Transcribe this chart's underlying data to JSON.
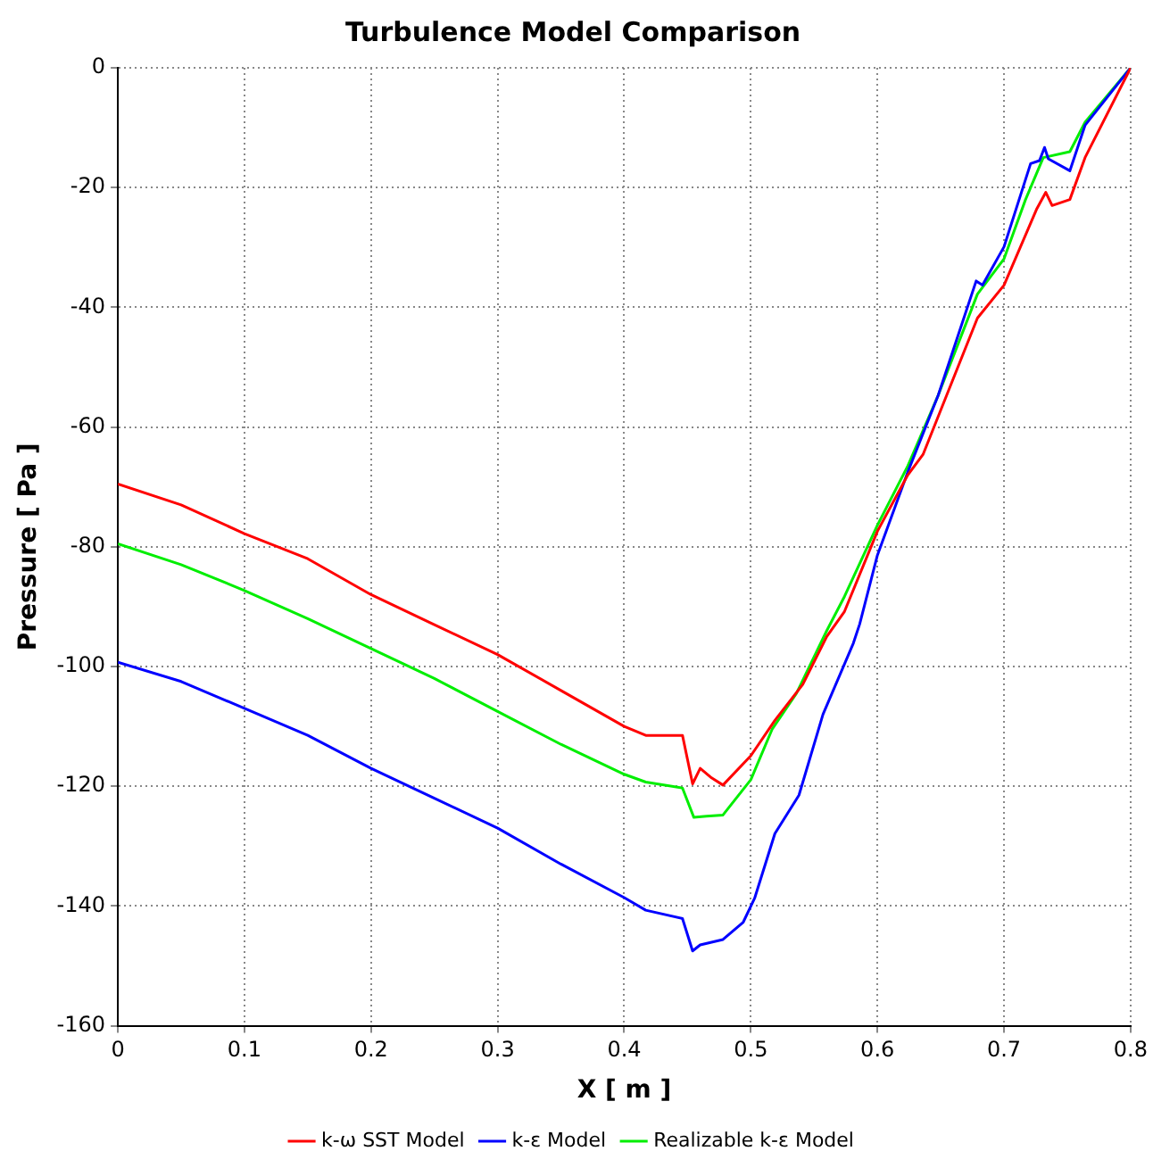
{
  "chart_data": {
    "type": "line",
    "title": "Turbulence Model Comparison",
    "xlabel": "X [ m ]",
    "ylabel": "Pressure [ Pa ]",
    "xlim": [
      0,
      0.8
    ],
    "xticks": [
      0,
      0.1,
      0.2,
      0.3,
      0.4,
      0.5,
      0.6,
      0.7,
      0.8
    ],
    "ylim": [
      -160,
      0
    ],
    "yticks": [
      -160,
      -140,
      -120,
      -100,
      -80,
      -60,
      -40,
      -20,
      0
    ],
    "grid": true,
    "legend": "bottom",
    "marker": "none",
    "line_style": "solid",
    "series": [
      {
        "name": "k-ω SST Model",
        "color": "#ff0000",
        "x": [
          0,
          0.05,
          0.1,
          0.15,
          0.2,
          0.25,
          0.3,
          0.35,
          0.4,
          0.417,
          0.446,
          0.454,
          0.46,
          0.469,
          0.478,
          0.5,
          0.519,
          0.541,
          0.56,
          0.574,
          0.6,
          0.624,
          0.636,
          0.679,
          0.7,
          0.726,
          0.733,
          0.738,
          0.752,
          0.764,
          0.8
        ],
        "values": [
          -69.5,
          -73,
          -77.8,
          -82,
          -88,
          -93,
          -98,
          -104,
          -110,
          -111.5,
          -111.5,
          -119.6,
          -117,
          -118.6,
          -119.8,
          -114.9,
          -109,
          -103,
          -95,
          -90.8,
          -77.4,
          -68,
          -64.6,
          -41.8,
          -36.3,
          -23.5,
          -20.8,
          -23,
          -22,
          -15,
          0
        ]
      },
      {
        "name": "k-ε Model",
        "color": "#0000ff",
        "x": [
          0,
          0.05,
          0.1,
          0.15,
          0.2,
          0.25,
          0.3,
          0.35,
          0.4,
          0.417,
          0.446,
          0.454,
          0.46,
          0.478,
          0.494,
          0.503,
          0.519,
          0.538,
          0.557,
          0.581,
          0.586,
          0.6,
          0.624,
          0.648,
          0.678,
          0.683,
          0.7,
          0.721,
          0.728,
          0.732,
          0.735,
          0.752,
          0.764,
          0.8
        ],
        "values": [
          -99.3,
          -102.5,
          -107,
          -111.5,
          -117,
          -122,
          -127,
          -133,
          -138.6,
          -140.7,
          -142.1,
          -147.5,
          -146.5,
          -145.6,
          -142.7,
          -138.7,
          -127.9,
          -121.5,
          -108,
          -96.1,
          -92.9,
          -81.4,
          -67.5,
          -54.7,
          -35.6,
          -36.3,
          -29.9,
          -16,
          -15.5,
          -13.3,
          -15.2,
          -17.2,
          -9.6,
          0
        ]
      },
      {
        "name": "Realizable k-ε Model",
        "color": "#00ee00",
        "x": [
          0,
          0.05,
          0.1,
          0.15,
          0.2,
          0.25,
          0.3,
          0.35,
          0.4,
          0.417,
          0.446,
          0.455,
          0.465,
          0.478,
          0.5,
          0.517,
          0.536,
          0.56,
          0.574,
          0.6,
          0.624,
          0.648,
          0.679,
          0.7,
          0.717,
          0.731,
          0.752,
          0.764,
          0.8
        ],
        "values": [
          -79.5,
          -83,
          -87.3,
          -92,
          -97,
          -102,
          -107.5,
          -113,
          -118,
          -119.3,
          -120.3,
          -125.2,
          -125,
          -124.8,
          -118.9,
          -110.4,
          -104.5,
          -94,
          -88.3,
          -76.4,
          -66.5,
          -54.7,
          -37.8,
          -31.9,
          -22,
          -15,
          -14,
          -9.1,
          0
        ]
      }
    ]
  }
}
